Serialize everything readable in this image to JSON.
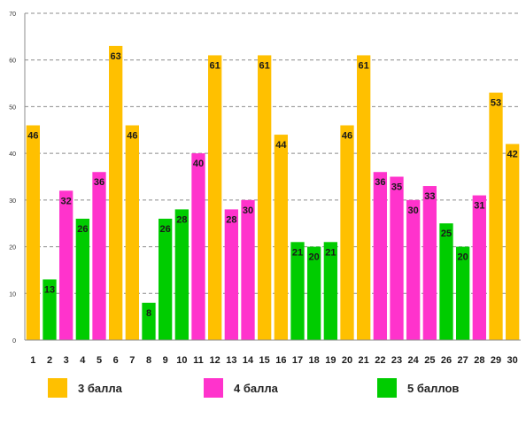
{
  "chart_data": {
    "type": "bar",
    "title": "",
    "xlabel": "",
    "ylabel": "",
    "ylim": [
      0,
      70
    ],
    "yticks": [
      0,
      10,
      20,
      30,
      40,
      50,
      60,
      70
    ],
    "grid": "horizontal-dashed",
    "legend_position": "bottom",
    "categories": [
      "1",
      "2",
      "3",
      "4",
      "5",
      "6",
      "7",
      "8",
      "9",
      "10",
      "11",
      "12",
      "13",
      "14",
      "15",
      "16",
      "17",
      "18",
      "19",
      "20",
      "21",
      "22",
      "23",
      "24",
      "25",
      "26",
      "27",
      "28",
      "29",
      "30"
    ],
    "values": [
      46,
      13,
      32,
      26,
      36,
      63,
      46,
      8,
      26,
      28,
      40,
      61,
      28,
      30,
      61,
      44,
      21,
      20,
      21,
      46,
      61,
      36,
      35,
      30,
      33,
      25,
      20,
      31,
      53,
      42
    ],
    "groups": [
      "g3",
      "g5",
      "g4",
      "g5",
      "g4",
      "g3",
      "g3",
      "g5",
      "g5",
      "g5",
      "g4",
      "g3",
      "g4",
      "g4",
      "g3",
      "g3",
      "g5",
      "g5",
      "g5",
      "g3",
      "g3",
      "g4",
      "g4",
      "g4",
      "g4",
      "g5",
      "g5",
      "g4",
      "g3",
      "g3"
    ],
    "series": [
      {
        "key": "g3",
        "name": "3 балла",
        "color": "#FFC000"
      },
      {
        "key": "g4",
        "name": "4 балла",
        "color": "#FF33CC"
      },
      {
        "key": "g5",
        "name": "5 баллов",
        "color": "#00CC00"
      }
    ]
  }
}
